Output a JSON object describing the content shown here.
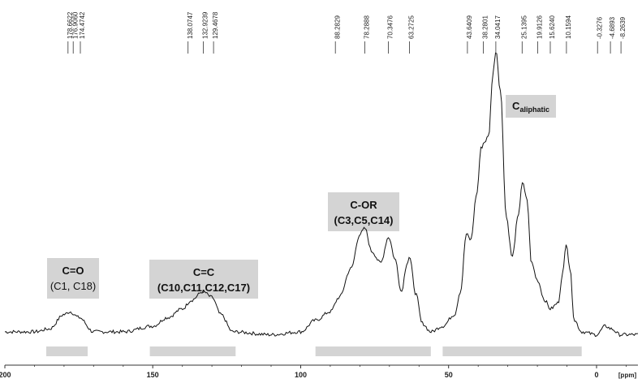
{
  "chart_data": {
    "type": "line",
    "title": "",
    "xlabel": "",
    "ylabel": "",
    "x_unit": "[ppm]",
    "xlim": [
      200,
      -14
    ],
    "x_reversed": true,
    "grid": false,
    "x_ticks": [
      200,
      150,
      100,
      50,
      0
    ],
    "peak_labels": [
      "178.6622",
      "176.9060",
      "174.4742",
      "138.0747",
      "132.9239",
      "129.4678",
      "88.2829",
      "78.2888",
      "70.3476",
      "63.2725",
      "43.6409",
      "38.2801",
      "34.0417",
      "25.1395",
      "19.9126",
      "15.6240",
      "10.1594",
      "-0.3276",
      "-4.6893",
      "-8.2639"
    ],
    "regions": [
      {
        "label": "C=O",
        "sublabel": "(C1, C18)",
        "range": [
          186,
          172
        ]
      },
      {
        "label": "C=C",
        "sublabel": "(C10,C11,C12,C17)",
        "range": [
          151,
          122
        ]
      },
      {
        "label": "C-OR",
        "sublabel": "(C3,C5,C14)",
        "range": [
          95,
          56
        ]
      },
      {
        "label": "C",
        "label_subscript": "aliphatic",
        "range": [
          52,
          5
        ]
      }
    ],
    "series": [
      {
        "points": [
          [
            200,
            0.02
          ],
          [
            190,
            0.02
          ],
          [
            185,
            0.03
          ],
          [
            180,
            0.08
          ],
          [
            178,
            0.09
          ],
          [
            175,
            0.07
          ],
          [
            170,
            0.02
          ],
          [
            160,
            0.02
          ],
          [
            150,
            0.04
          ],
          [
            145,
            0.07
          ],
          [
            140,
            0.1
          ],
          [
            137,
            0.13
          ],
          [
            133,
            0.16
          ],
          [
            130,
            0.14
          ],
          [
            127,
            0.08
          ],
          [
            123,
            0.02
          ],
          [
            110,
            0.01
          ],
          [
            100,
            0.02
          ],
          [
            95,
            0.06
          ],
          [
            90,
            0.09
          ],
          [
            87,
            0.14
          ],
          [
            83,
            0.24
          ],
          [
            80,
            0.36
          ],
          [
            78.3,
            0.38
          ],
          [
            76,
            0.3
          ],
          [
            73,
            0.26
          ],
          [
            70.3,
            0.35
          ],
          [
            68,
            0.27
          ],
          [
            66,
            0.16
          ],
          [
            64,
            0.26
          ],
          [
            63.3,
            0.28
          ],
          [
            61,
            0.15
          ],
          [
            59,
            0.05
          ],
          [
            56,
            0.02
          ],
          [
            52,
            0.04
          ],
          [
            48,
            0.08
          ],
          [
            46,
            0.16
          ],
          [
            44,
            0.36
          ],
          [
            42.5,
            0.34
          ],
          [
            40.5,
            0.5
          ],
          [
            39,
            0.66
          ],
          [
            38,
            0.68
          ],
          [
            36.5,
            0.7
          ],
          [
            35,
            0.92
          ],
          [
            34.0,
            1.0
          ],
          [
            32.5,
            0.86
          ],
          [
            30.5,
            0.42
          ],
          [
            28.5,
            0.28
          ],
          [
            26.5,
            0.42
          ],
          [
            25.1,
            0.54
          ],
          [
            23.5,
            0.48
          ],
          [
            22,
            0.26
          ],
          [
            20,
            0.2
          ],
          [
            17.5,
            0.13
          ],
          [
            15.6,
            0.1
          ],
          [
            13,
            0.12
          ],
          [
            11.5,
            0.22
          ],
          [
            10.2,
            0.33
          ],
          [
            9,
            0.24
          ],
          [
            7.5,
            0.06
          ],
          [
            5,
            0.02
          ],
          [
            0,
            0.01
          ],
          [
            -3,
            0.04
          ],
          [
            -5,
            0.03
          ],
          [
            -8,
            0.01
          ],
          [
            -14,
            0.01
          ]
        ]
      }
    ]
  }
}
